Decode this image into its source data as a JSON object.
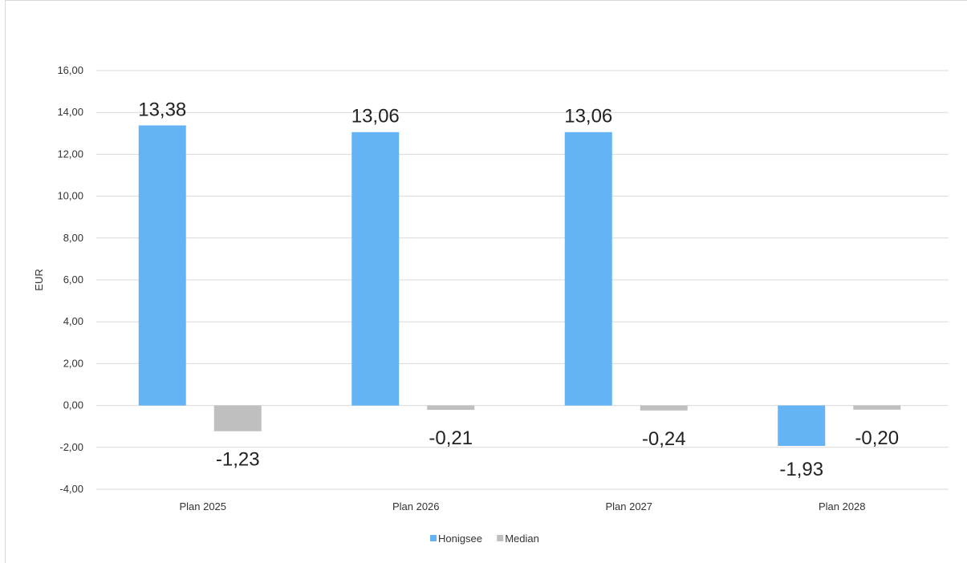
{
  "chart_data": {
    "type": "bar",
    "title": "",
    "xlabel": "",
    "ylabel": "EUR",
    "categories": [
      "Plan 2025",
      "Plan 2026",
      "Plan 2027",
      "Plan 2028"
    ],
    "series": [
      {
        "name": "Honigsee",
        "color": "#63b3f5",
        "values": [
          13.38,
          13.06,
          13.06,
          -1.93
        ],
        "labels": [
          "13,38",
          "13,06",
          "13,06",
          "-1,93"
        ]
      },
      {
        "name": "Median",
        "color": "#bfbfbf",
        "values": [
          -1.23,
          -0.21,
          -0.24,
          -0.2
        ],
        "labels": [
          "-1,23",
          "-0,21",
          "-0,24",
          "-0,20"
        ]
      }
    ],
    "ylim": [
      -4,
      16
    ],
    "yticks": [
      16,
      14,
      12,
      10,
      8,
      6,
      4,
      2,
      0,
      -2,
      -4
    ],
    "ytick_labels": [
      "16,00",
      "14,00",
      "12,00",
      "10,00",
      "8,00",
      "6,00",
      "4,00",
      "2,00",
      "0,00",
      "-2,00",
      "-4,00"
    ],
    "grid": true,
    "legend": "bottom-center"
  }
}
